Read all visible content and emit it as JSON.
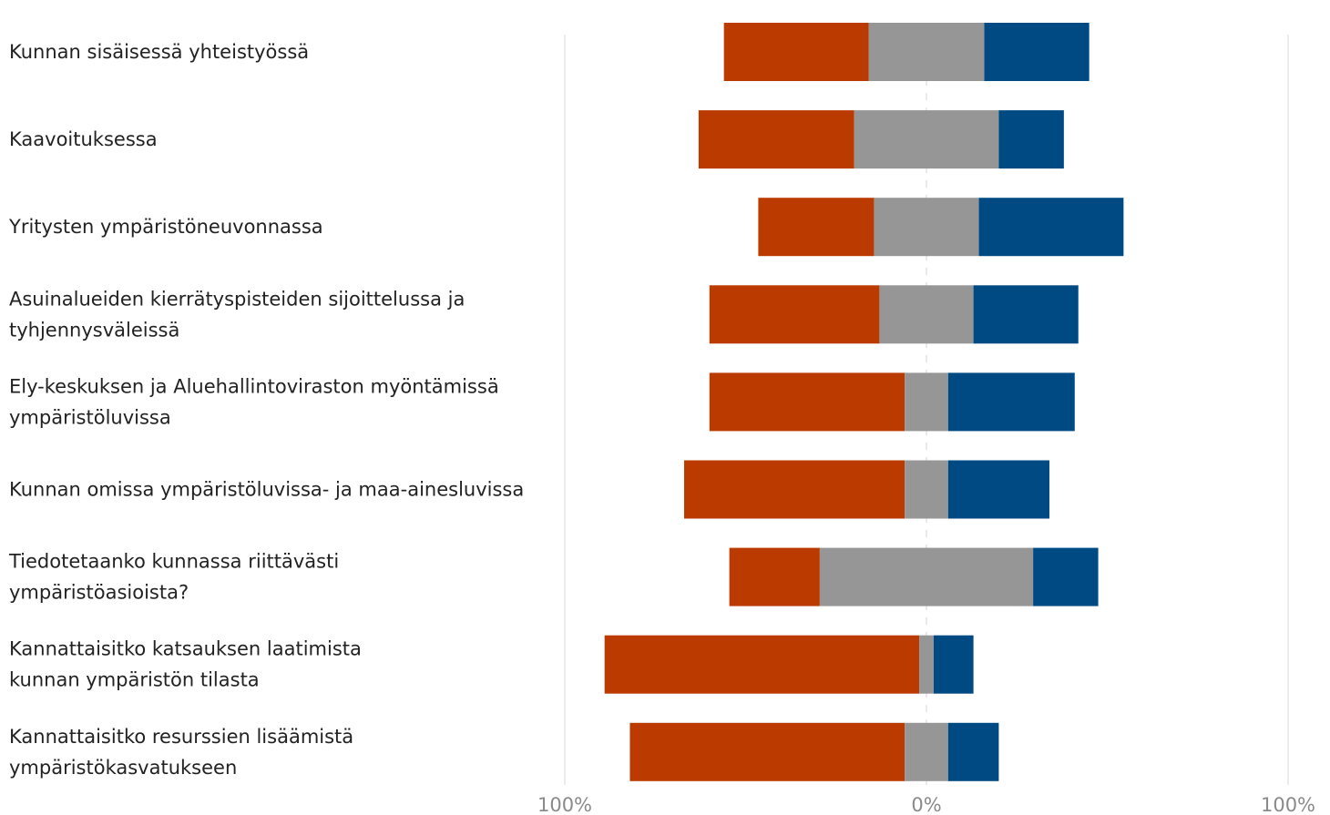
{
  "chart_data": {
    "type": "bar",
    "orientation": "horizontal",
    "stacked": true,
    "diverging": true,
    "categories": [
      [
        "Kunnan sisäisessä yhteistyössä"
      ],
      [
        "Kaavoituksessa"
      ],
      [
        "Yritysten ympäristöneuvonnassa"
      ],
      [
        "Asuinalueiden kierrätyspisteiden sijoittelussa ja",
        "tyhjennysväleissä"
      ],
      [
        "Ely-keskuksen ja Aluehallintoviraston myöntämissä",
        "ympäristöluvissa"
      ],
      [
        "Kunnan omissa ympäristöluvissa- ja maa-ainesluvissa"
      ],
      [
        "Tiedotetaanko kunnassa riittävästi",
        "ympäristöasioista?"
      ],
      [
        "Kannattaisitko katsauksen laatimista",
        "kunnan ympäristön tilasta"
      ],
      [
        "Kannattaisitko resurssien lisäämistä",
        "ympäristökasvatukseen"
      ]
    ],
    "series": [
      {
        "color": "#bb3a00",
        "values": [
          40,
          43,
          32,
          47,
          54,
          61,
          25,
          87,
          76
        ]
      },
      {
        "color": "#969696",
        "values": [
          32,
          40,
          29,
          26,
          12,
          12,
          59,
          4,
          12
        ]
      },
      {
        "color": "#004a84",
        "values": [
          29,
          18,
          40,
          29,
          35,
          28,
          18,
          11,
          14
        ]
      }
    ],
    "xlim": [
      -100,
      100
    ],
    "x_ticks": [
      {
        "value": -100,
        "label": "100%"
      },
      {
        "value": 0,
        "label": "0%"
      },
      {
        "value": 100,
        "label": "100%"
      }
    ],
    "grid": true
  }
}
